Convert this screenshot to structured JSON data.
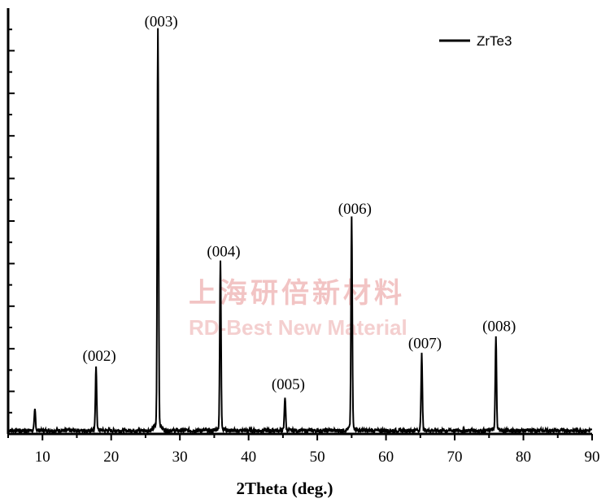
{
  "chart_data": {
    "type": "line",
    "title": "",
    "xlabel": "2Theta (deg.)",
    "ylabel": "",
    "xlim": [
      5,
      90
    ],
    "ylim": [
      0,
      100
    ],
    "x_ticks": [
      10,
      20,
      30,
      40,
      50,
      60,
      70,
      80,
      90
    ],
    "y_tick_labels_shown": false,
    "grid": false,
    "legend": {
      "position": "top-right",
      "entries": [
        "ZrTe3"
      ]
    },
    "series": [
      {
        "name": "ZrTe3",
        "color": "#000000",
        "peaks": [
          {
            "x": 8.9,
            "y": 4.8
          },
          {
            "x": 17.8,
            "y": 14.5,
            "label": "(002)"
          },
          {
            "x": 26.8,
            "y": 93.0,
            "label": "(003)"
          },
          {
            "x": 35.9,
            "y": 39.0,
            "label": "(004)"
          },
          {
            "x": 45.3,
            "y": 7.8,
            "label": "(005)"
          },
          {
            "x": 55.0,
            "y": 49.0,
            "label": "(006)"
          },
          {
            "x": 65.2,
            "y": 17.5,
            "label": "(007)"
          },
          {
            "x": 76.0,
            "y": 21.5,
            "label": "(008)"
          }
        ]
      }
    ]
  },
  "watermark": {
    "line1": "上海研倍新材料",
    "line2": "RD-Best New Material",
    "color": "#f2c4c4"
  }
}
